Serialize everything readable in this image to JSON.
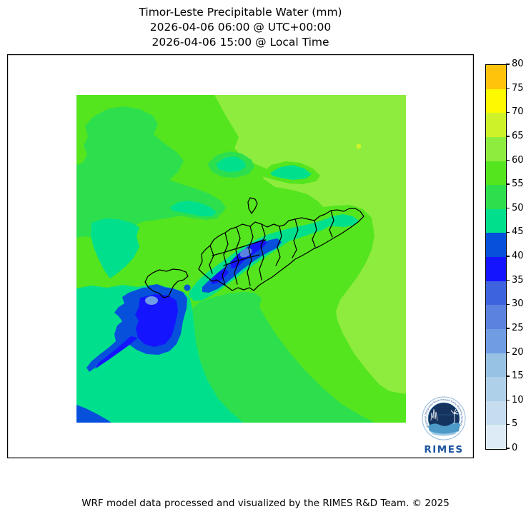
{
  "title": {
    "line1": "Timor-Leste Precipitable Water (mm)",
    "line2": "2026-04-06 06:00 @ UTC+00:00",
    "line3": "2026-04-06 15:00 @ Local Time"
  },
  "footer": {
    "credit": "WRF model data processed and visualized by the RIMES R&D Team. © 2025"
  },
  "colorbar": {
    "min": 0,
    "max": 80,
    "tick_step": 5,
    "ticks_top_to_bottom": [
      "80",
      "75",
      "70",
      "65",
      "60",
      "55",
      "50",
      "45",
      "40",
      "35",
      "30",
      "25",
      "20",
      "15",
      "10",
      "5",
      "0"
    ],
    "segments_top_to_bottom": [
      {
        "level": "75-80",
        "color": "#FFC30B"
      },
      {
        "level": "70-75",
        "color": "#FDF900"
      },
      {
        "level": "65-70",
        "color": "#CEF228"
      },
      {
        "level": "60-65",
        "color": "#8DEC3E"
      },
      {
        "level": "55-60",
        "color": "#54E51E"
      },
      {
        "level": "50-55",
        "color": "#2EDF4D"
      },
      {
        "level": "45-50",
        "color": "#00E08C"
      },
      {
        "level": "40-45",
        "color": "#0650DC"
      },
      {
        "level": "35-40",
        "color": "#1414FF"
      },
      {
        "level": "30-35",
        "color": "#3D64DE"
      },
      {
        "level": "25-30",
        "color": "#5A82DE"
      },
      {
        "level": "20-25",
        "color": "#6F9CE2"
      },
      {
        "level": "15-20",
        "color": "#97C2E3"
      },
      {
        "level": "10-15",
        "color": "#AFD0E9"
      },
      {
        "level": "5-10",
        "color": "#C5DDEF"
      },
      {
        "level": "0-5",
        "color": "#DCEBF5"
      }
    ]
  },
  "logo": {
    "name": "RIMES",
    "arc_text": "Regional Integrated Multi-Hazard Early Warning System",
    "text_color": "#1E55A0"
  },
  "map_content": {
    "type": "filled_contour_map",
    "variable": "Precipitable Water",
    "units": "mm",
    "region": "Timor-Leste island and surrounding seas",
    "outlined_features": [
      "Timor-Leste district boundaries",
      "Oecusse enclave outline",
      "Atauro island outline"
    ],
    "field_summary": [
      {
        "area": "most of the sea around Timor",
        "value_range_mm": "55-60"
      },
      {
        "area": "north-east quadrant and eastern strip",
        "value_range_mm": "60-65"
      },
      {
        "area": "patches north-west, west and south of the island",
        "value_range_mm": "45-55"
      },
      {
        "area": "core south-west of the island (driest blob)",
        "value_range_mm": "20-45"
      },
      {
        "area": "central Timor-Leste highlands diagonal streak",
        "value_range_mm": "25-45"
      },
      {
        "area": "tiny spot in the north-east",
        "value_range_mm": "65-70"
      }
    ]
  }
}
